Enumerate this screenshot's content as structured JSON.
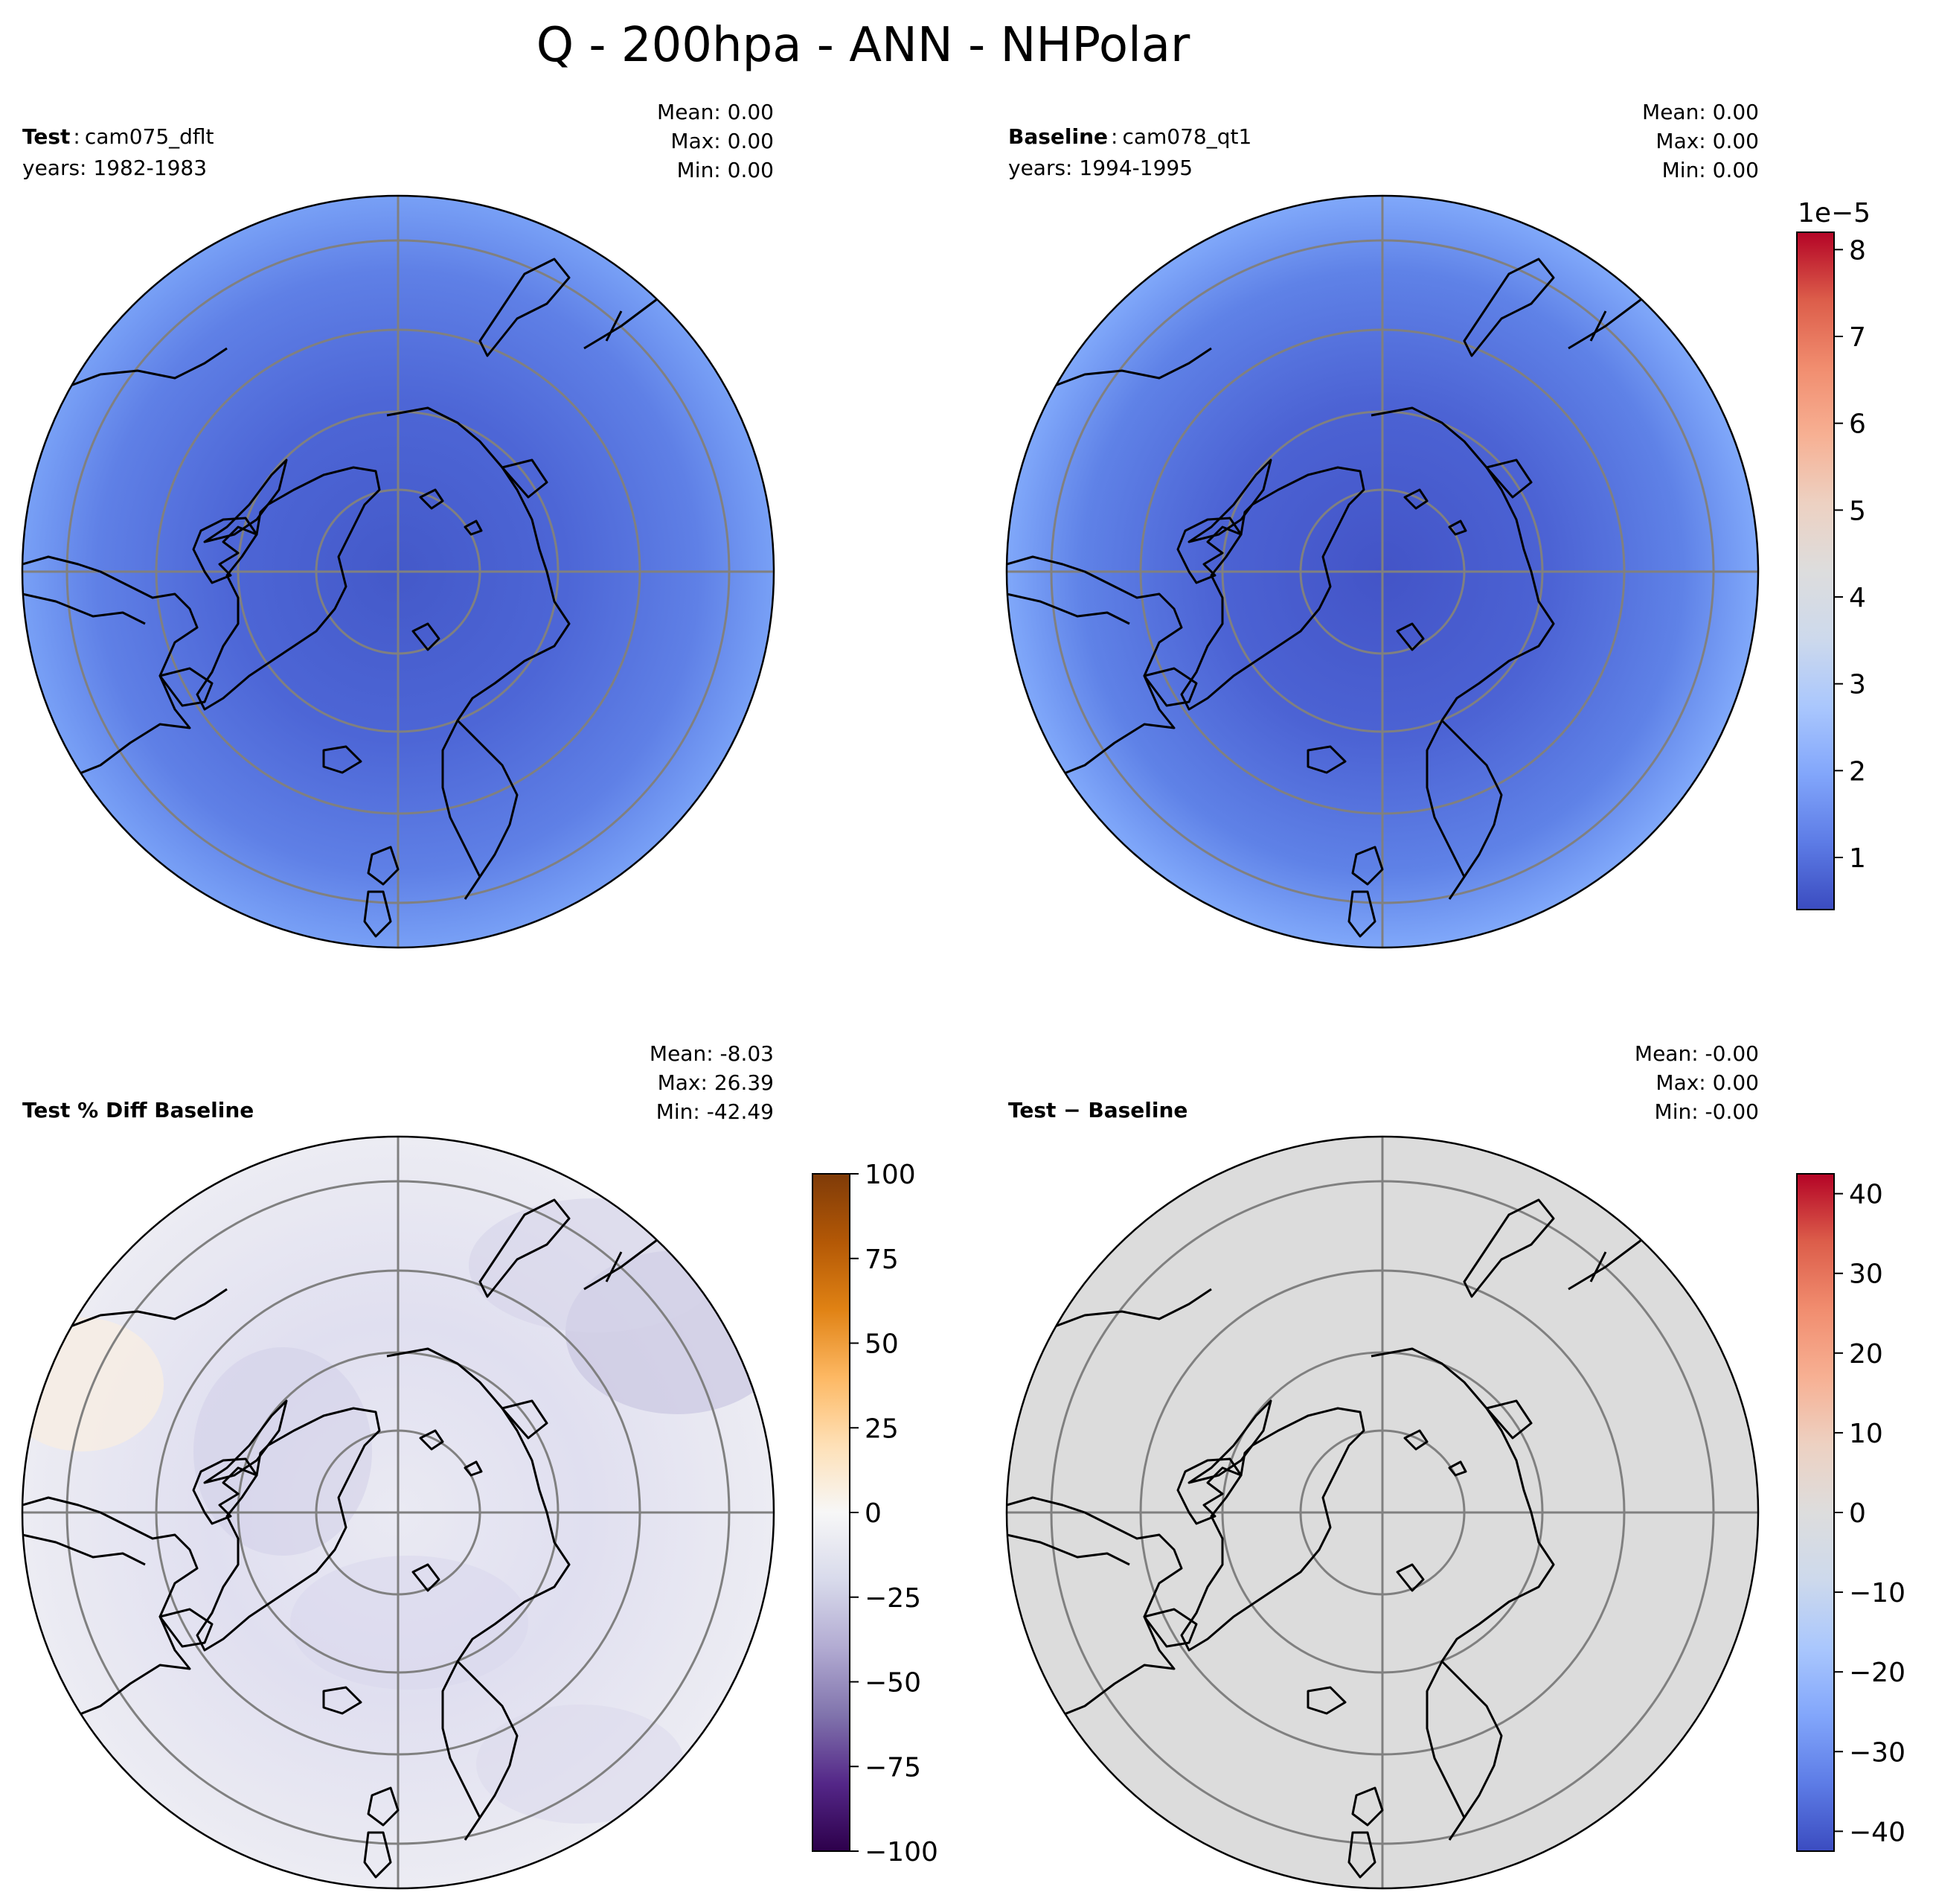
{
  "figure_title": "Q - 200hpa - ANN - NHPolar",
  "colors": {
    "coolwarm": [
      "#3b4cc0",
      "#5d7ce6",
      "#82a6fb",
      "#aac7fd",
      "#cdd9ec",
      "#dddddd",
      "#edd1c2",
      "#f7b093",
      "#f18d6f",
      "#dc5d4a",
      "#b40426"
    ],
    "puor": [
      "#2d004b",
      "#542788",
      "#8073ac",
      "#b2abd2",
      "#d8daeb",
      "#f7f7f7",
      "#fee0b6",
      "#fdb863",
      "#e08214",
      "#b35806",
      "#7f3b08"
    ],
    "graticule": "#808080",
    "coastline": "#000000",
    "diff_field": "#dcdcdc"
  },
  "chart_data": [
    {
      "type": "heatmap",
      "panel": "test",
      "title_bold": "Test",
      "title_sep": ":",
      "title_case": "cam075_dflt",
      "years": "years: 1982-1983",
      "stats": {
        "mean": "Mean:  0.00",
        "max": "Max:  0.00",
        "min": "Min:  0.00"
      },
      "projection": "North Polar Stereographic",
      "field_description": "specific humidity at 200 hPa, ~0.5e-5 near pole rising to ~2e-5 at edge"
    },
    {
      "type": "heatmap",
      "panel": "baseline",
      "title_bold": "Baseline",
      "title_sep": ":",
      "title_case": "cam078_qt1",
      "years": "years: 1994-1995",
      "stats": {
        "mean": "Mean:  0.00",
        "max": "Max:  0.00",
        "min": "Min:  0.00"
      },
      "colorbar": {
        "cmap": "coolwarm",
        "range": [
          0.4,
          8.2
        ],
        "ticks": [
          1,
          2,
          3,
          4,
          5,
          6,
          7,
          8
        ],
        "tick_labels": [
          "1",
          "2",
          "3",
          "4",
          "5",
          "6",
          "7",
          "8"
        ],
        "offset_label": "1e−5"
      }
    },
    {
      "type": "heatmap",
      "panel": "pct_diff",
      "title_bold": "Test % Diff Baseline",
      "stats": {
        "mean": "Mean: -8.03",
        "max": "Max: 26.39",
        "min": "Min: -42.49"
      },
      "colorbar": {
        "cmap": "PuOr_r",
        "range": [
          -100,
          100
        ],
        "ticks": [
          100,
          75,
          50,
          25,
          0,
          -25,
          -50,
          -75,
          -100
        ],
        "tick_labels": [
          "100",
          "75",
          "50",
          "25",
          "0",
          "−25",
          "−50",
          "−75",
          "−100"
        ]
      }
    },
    {
      "type": "heatmap",
      "panel": "diff",
      "title_bold": "Test − Baseline",
      "stats": {
        "mean": "Mean: -0.00",
        "max": "Max:  0.00",
        "min": "Min: -0.00"
      },
      "colorbar": {
        "cmap": "coolwarm",
        "range": [
          -42.49,
          42.49
        ],
        "ticks": [
          40,
          30,
          20,
          10,
          0,
          -10,
          -20,
          -30,
          -40
        ],
        "tick_labels": [
          "40",
          "30",
          "20",
          "10",
          "0",
          "−10",
          "−20",
          "−30",
          "−40"
        ]
      }
    }
  ]
}
